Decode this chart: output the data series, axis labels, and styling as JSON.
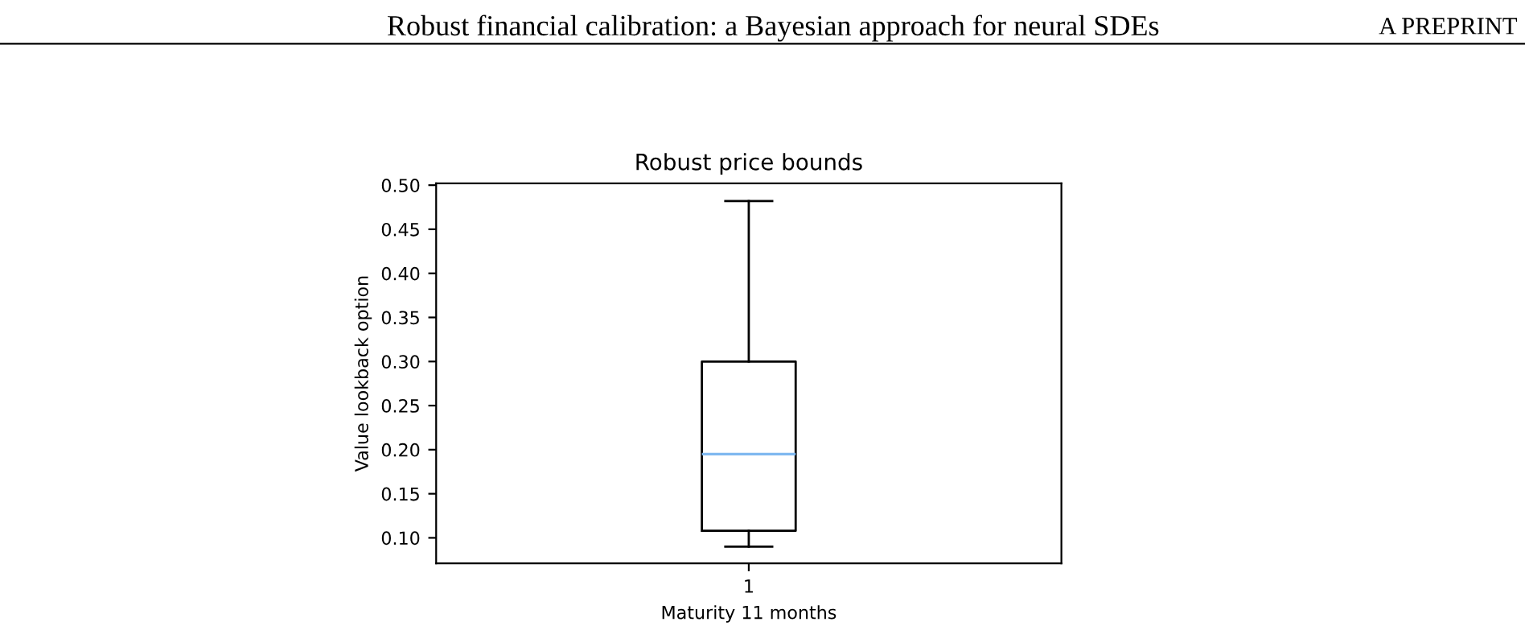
{
  "chart_data": {
    "type": "box",
    "title": "Robust price bounds",
    "xlabel": "Maturity 11 months",
    "ylabel": "Value lookback option",
    "annotations": [
      "Robust financial calibration: a Bayesian approach for neural SDEs",
      "A PREPRINT"
    ],
    "categories": [
      "1"
    ],
    "boxes": [
      {
        "low": 0.09,
        "q1": 0.108,
        "median": 0.195,
        "q3": 0.3,
        "high": 0.482
      }
    ],
    "color": "#000000",
    "ylim": [
      0.071,
      0.502
    ],
    "yticks": [
      {
        "value": 0.1,
        "label": "0.10"
      },
      0.15,
      {
        "value": 0.2,
        "label": "0.20"
      },
      0.25,
      {
        "value": 0.3,
        "label": "0.30"
      },
      0.35,
      {
        "value": 0.4,
        "label": "0.40"
      },
      0.45,
      {
        "value": 0.5,
        "label": "0.50"
      }
    ],
    "grid": false
  }
}
